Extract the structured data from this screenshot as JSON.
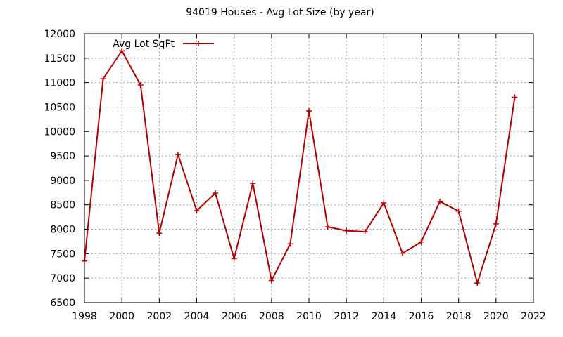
{
  "chart_data": {
    "type": "line",
    "title": "94019 Houses - Avg Lot Size (by year)",
    "xlabel": "",
    "ylabel": "",
    "xlim": [
      1998,
      2022
    ],
    "ylim": [
      6500,
      12000
    ],
    "x_ticks": [
      "1998",
      "2000",
      "2002",
      "2004",
      "2006",
      "2008",
      "2010",
      "2012",
      "2014",
      "2016",
      "2018",
      "2020",
      "2022"
    ],
    "y_ticks": [
      "6500",
      "7000",
      "7500",
      "8000",
      "8500",
      "9000",
      "9500",
      "10000",
      "10500",
      "11000",
      "11500",
      "12000"
    ],
    "grid": true,
    "legend_position": "top-left",
    "series": [
      {
        "name": "Avg Lot SqFt",
        "color": "#b40000",
        "marker": "plus",
        "x": [
          1998,
          1999,
          2000,
          2001,
          2002,
          2003,
          2004,
          2005,
          2006,
          2007,
          2008,
          2009,
          2010,
          2011,
          2012,
          2013,
          2014,
          2015,
          2016,
          2017,
          2018,
          2019,
          2020,
          2021
        ],
        "y": [
          7350,
          11080,
          11650,
          10950,
          7920,
          9530,
          8380,
          8740,
          7400,
          8940,
          6950,
          7700,
          10420,
          8050,
          7970,
          7950,
          8540,
          7510,
          7740,
          8570,
          8370,
          6900,
          8110,
          10700
        ]
      }
    ]
  }
}
